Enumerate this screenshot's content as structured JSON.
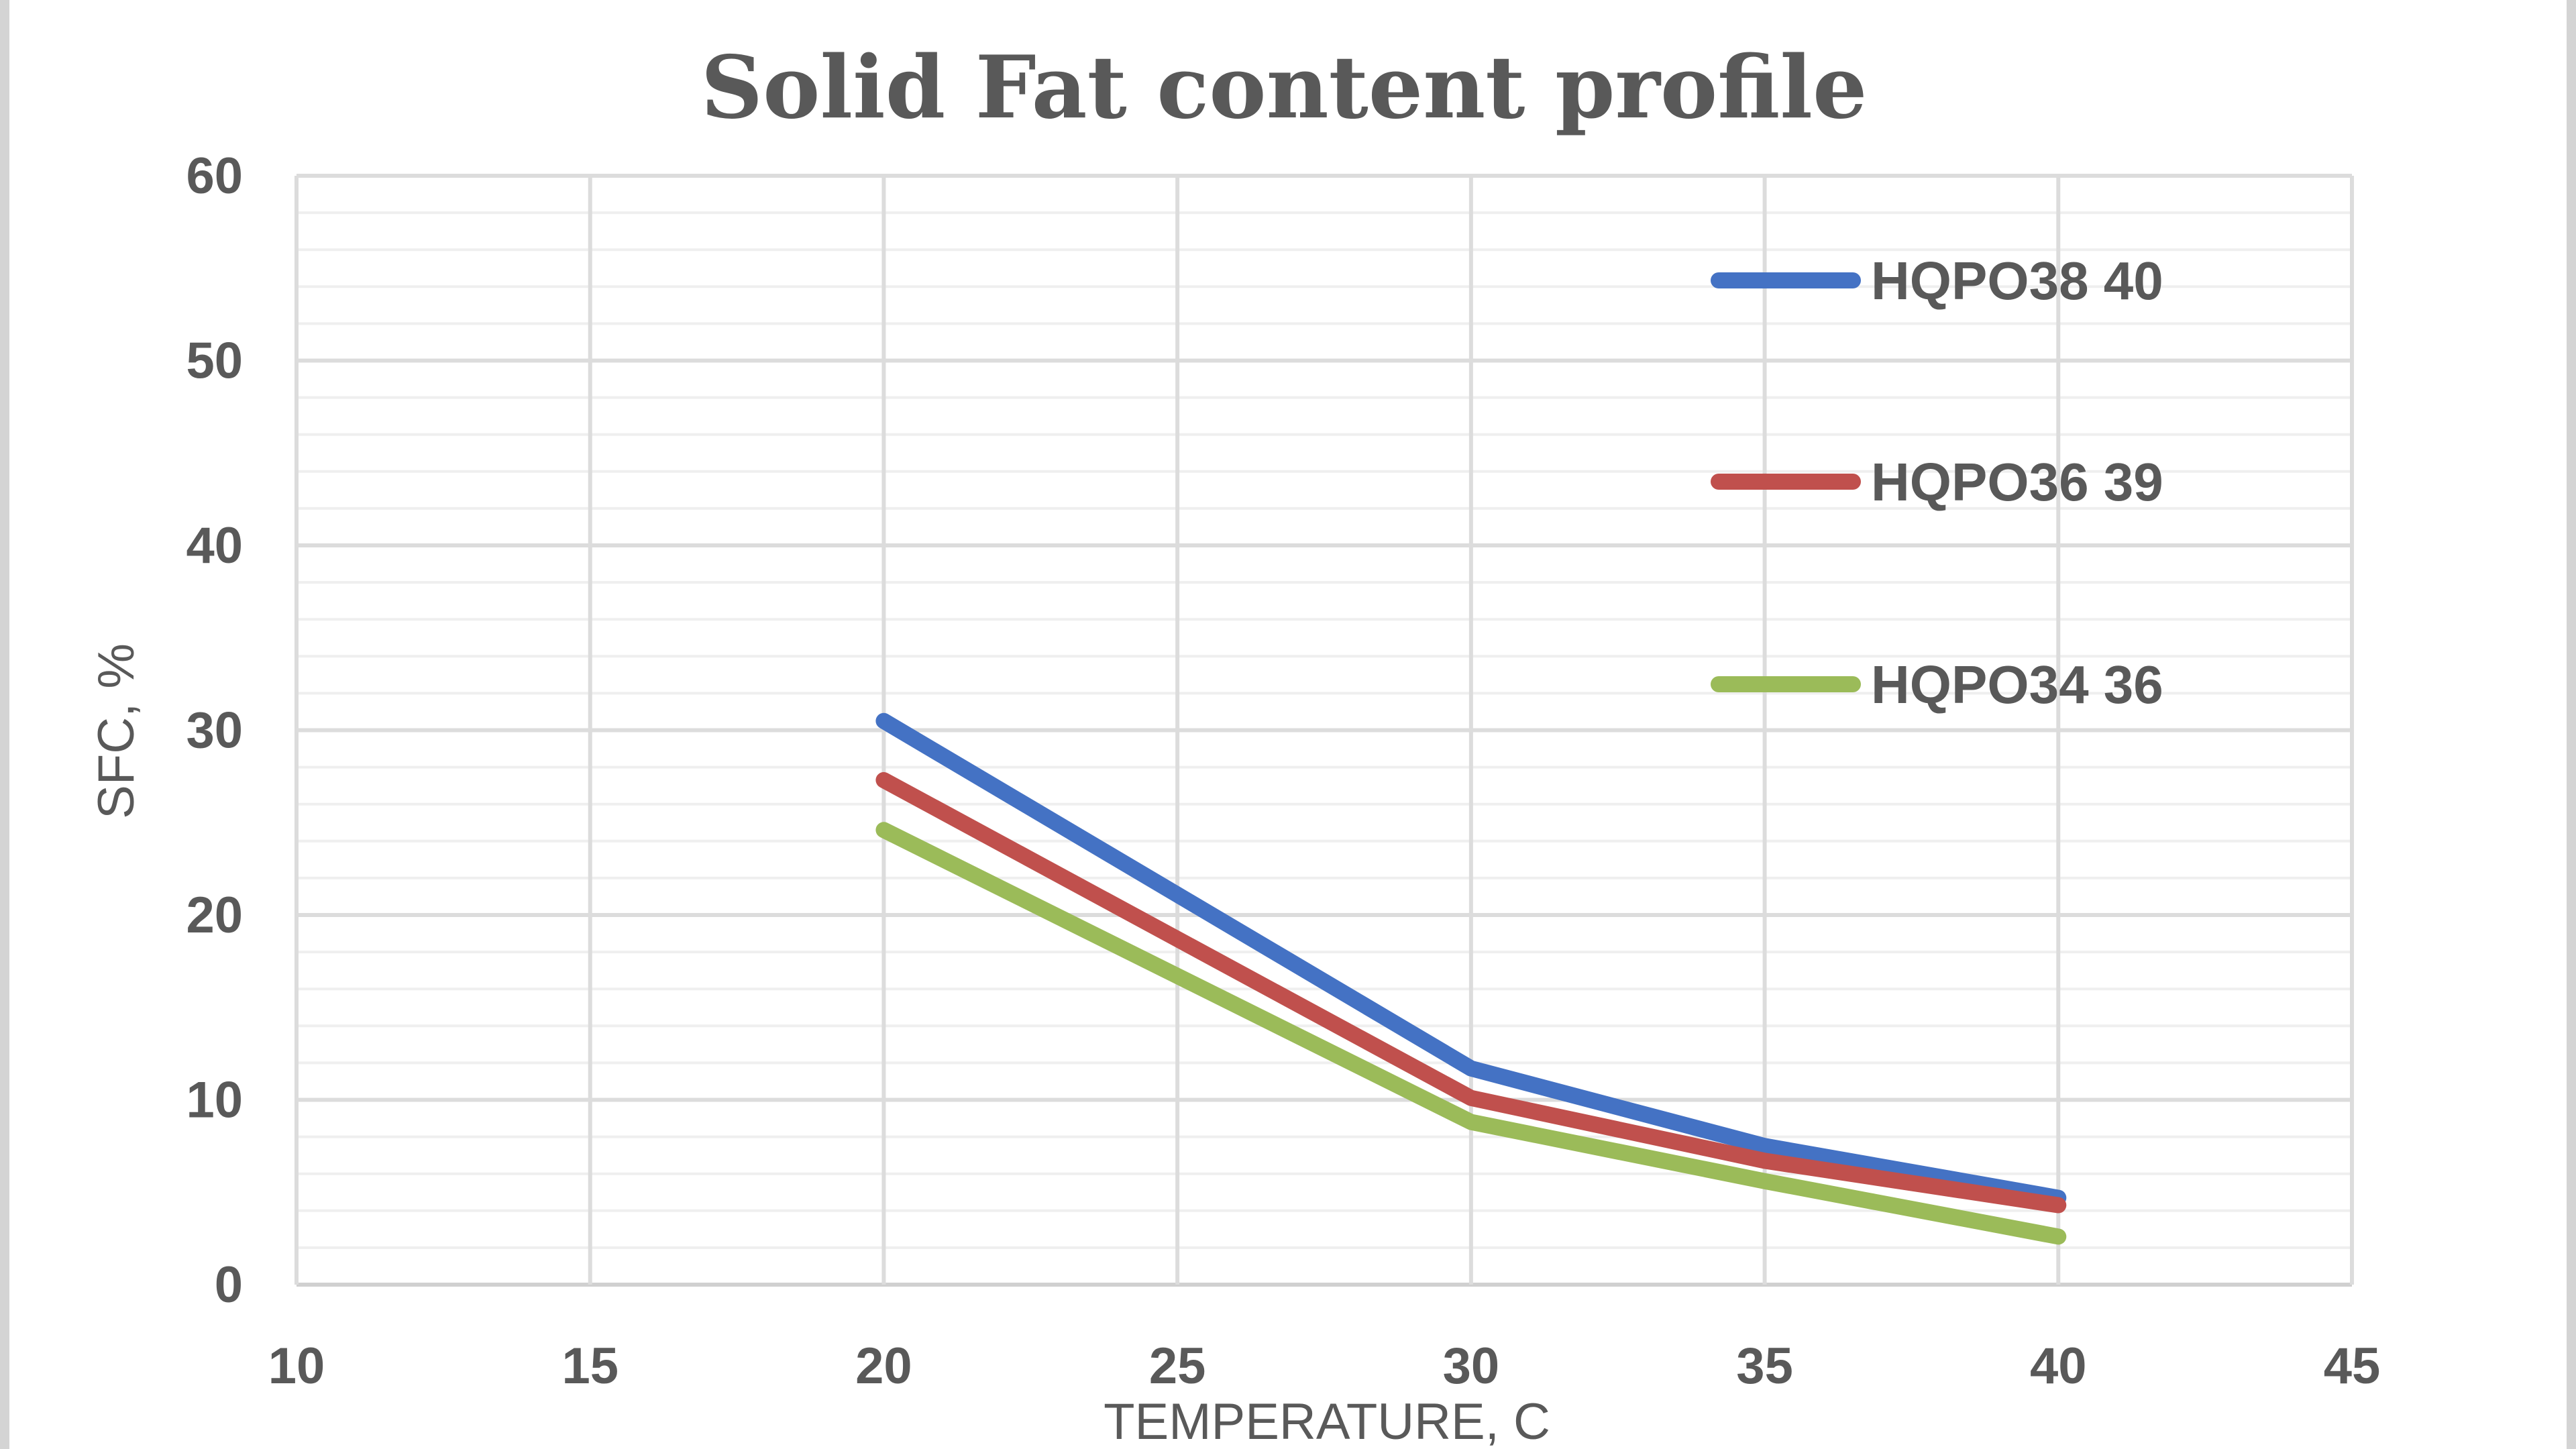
{
  "chart_data": {
    "type": "line",
    "title": "Solid Fat content profile",
    "xlabel": "TEMPERATURE, C",
    "ylabel": "SFC, %",
    "xlim": [
      10,
      45
    ],
    "ylim": [
      0,
      60
    ],
    "x_ticks": [
      10,
      15,
      20,
      25,
      30,
      35,
      40,
      45
    ],
    "y_ticks": [
      0,
      10,
      20,
      30,
      40,
      50,
      60
    ],
    "grid": true,
    "minor_grid": true,
    "legend_position": "top-right",
    "series": [
      {
        "name": "HQPO38 40",
        "color": "#4472c4",
        "x": [
          20,
          30,
          35,
          40
        ],
        "y": [
          30.5,
          11.7,
          7.5,
          4.7
        ]
      },
      {
        "name": "HQPO36 39",
        "color": "#c0504d",
        "x": [
          20,
          30,
          35,
          40
        ],
        "y": [
          27.3,
          10.1,
          6.7,
          4.3
        ]
      },
      {
        "name": "HQPO34 36",
        "color": "#9bbb59",
        "x": [
          20,
          30,
          35,
          40
        ],
        "y": [
          24.6,
          8.8,
          5.6,
          2.6
        ]
      }
    ]
  }
}
